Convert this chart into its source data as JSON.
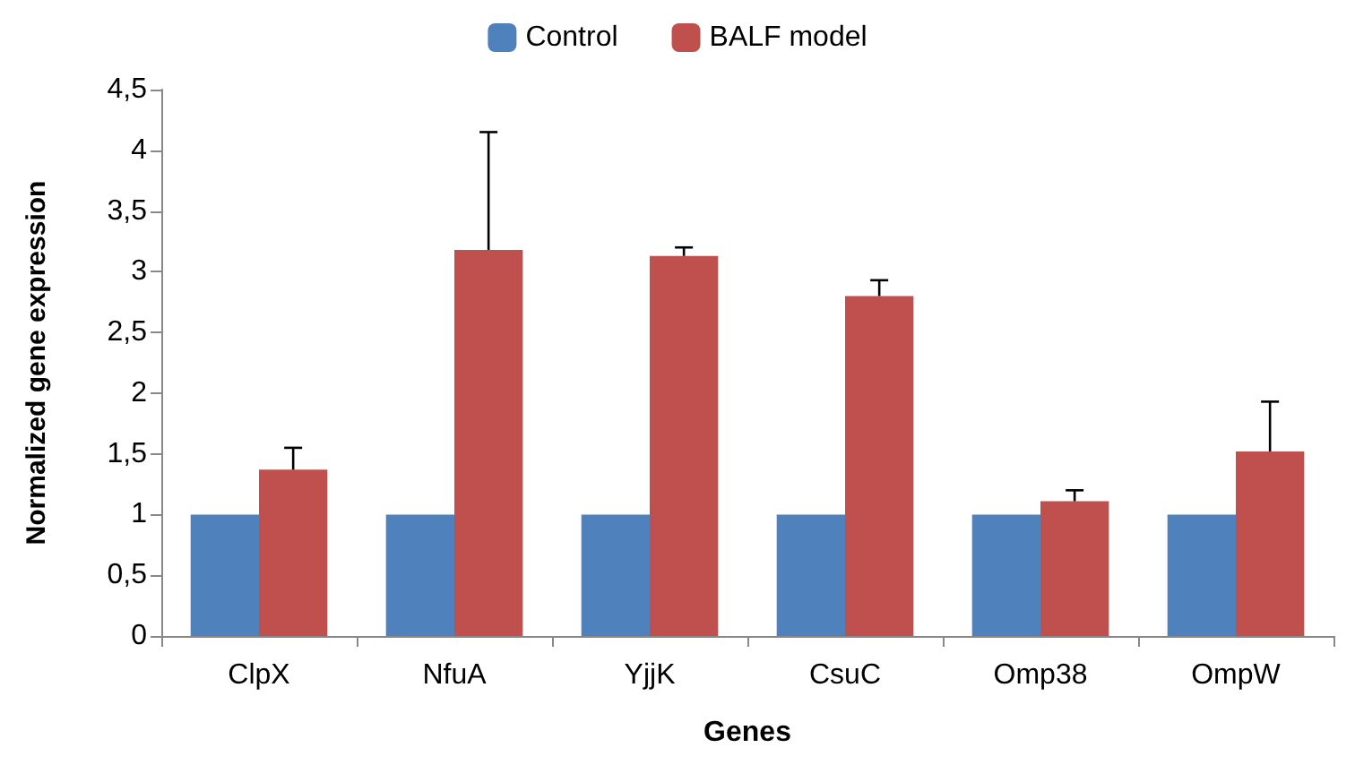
{
  "chart_data": {
    "type": "bar",
    "xlabel": "Genes",
    "ylabel": "Normalized gene expression",
    "categories": [
      "ClpX",
      "NfuA",
      "YjjK",
      "CsuC",
      "Omp38",
      "OmpW"
    ],
    "series": [
      {
        "name": "Control",
        "color": "#4f81bd",
        "values": [
          1,
          1,
          1,
          1,
          1,
          1
        ]
      },
      {
        "name": "BALF model",
        "color": "#c0504d",
        "values": [
          1.37,
          3.18,
          3.13,
          2.8,
          1.11,
          1.52
        ],
        "errors": [
          [
            1.37,
            1.55
          ],
          [
            3.18,
            4.15
          ],
          [
            3.13,
            3.2
          ],
          [
            2.8,
            2.93
          ],
          [
            1.11,
            1.2
          ],
          [
            1.52,
            1.93
          ]
        ]
      }
    ],
    "ylim": [
      0,
      4.5
    ],
    "yticks": [
      0,
      {
        "value": 0.5,
        "label": "0,5"
      },
      1,
      {
        "value": 1.5,
        "label": "1,5"
      },
      2,
      {
        "value": 2.5,
        "label": "2,5"
      },
      3,
      {
        "value": 3.5,
        "label": "3,5"
      },
      4,
      {
        "value": 4.5,
        "label": "4,5"
      }
    ],
    "grid": false,
    "legend": "top"
  }
}
